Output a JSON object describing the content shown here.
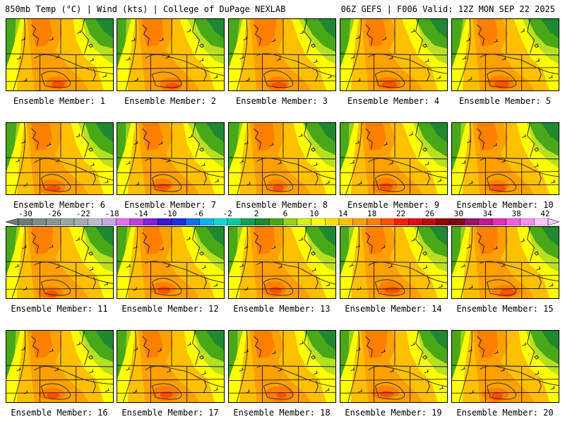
{
  "header": {
    "left_title": "850mb Temp (°C) | Wind (kts) | College of DuPage NEXLAB",
    "right_title": "06Z GEFS | F006 Valid: 12Z MON SEP 22 2025"
  },
  "panels": [
    {
      "member": 1,
      "caption": "Ensemble Member: 1"
    },
    {
      "member": 2,
      "caption": "Ensemble Member: 2"
    },
    {
      "member": 3,
      "caption": "Ensemble Member: 3"
    },
    {
      "member": 4,
      "caption": "Ensemble Member: 4"
    },
    {
      "member": 5,
      "caption": "Ensemble Member: 5"
    },
    {
      "member": 6,
      "caption": "Ensemble Member: 6"
    },
    {
      "member": 7,
      "caption": "Ensemble Member: 7"
    },
    {
      "member": 8,
      "caption": "Ensemble Member: 8"
    },
    {
      "member": 9,
      "caption": "Ensemble Member: 9"
    },
    {
      "member": 10,
      "caption": "Ensemble Member: 10"
    },
    {
      "member": 11,
      "caption": "Ensemble Member: 11"
    },
    {
      "member": 12,
      "caption": "Ensemble Member: 12"
    },
    {
      "member": 13,
      "caption": "Ensemble Member: 13"
    },
    {
      "member": 14,
      "caption": "Ensemble Member: 14"
    },
    {
      "member": 15,
      "caption": "Ensemble Member: 15"
    },
    {
      "member": 16,
      "caption": "Ensemble Member: 16"
    },
    {
      "member": 17,
      "caption": "Ensemble Member: 17"
    },
    {
      "member": 18,
      "caption": "Ensemble Member: 18"
    },
    {
      "member": 19,
      "caption": "Ensemble Member: 19"
    },
    {
      "member": 20,
      "caption": "Ensemble Member: 20"
    }
  ],
  "colorbar": {
    "labels": [
      "-30",
      "-26",
      "-22",
      "-18",
      "-14",
      "-10",
      "-6",
      "-2",
      "2",
      "6",
      "10",
      "14",
      "18",
      "22",
      "26",
      "30",
      "34",
      "38",
      "42"
    ],
    "colors": [
      "#6e7a72",
      "#7f8a82",
      "#8d9690",
      "#9ea59f",
      "#a8abb4",
      "#b8bfd0",
      "#c8a8e6",
      "#e070f0",
      "#c040e0",
      "#8020d8",
      "#3c18c8",
      "#1830d8",
      "#1070e8",
      "#10b0f0",
      "#10d8d8",
      "#10c8a0",
      "#10a050",
      "#208830",
      "#48a818",
      "#98d018",
      "#d8f018",
      "#ffff00",
      "#ffe000",
      "#ffc000",
      "#ffa000",
      "#ff8000",
      "#ff5000",
      "#f02010",
      "#d81010",
      "#b81010",
      "#900808",
      "#800818",
      "#a01060",
      "#c01890",
      "#e030b8",
      "#f060e0",
      "#f890f0",
      "#ffc8ff"
    ]
  }
}
